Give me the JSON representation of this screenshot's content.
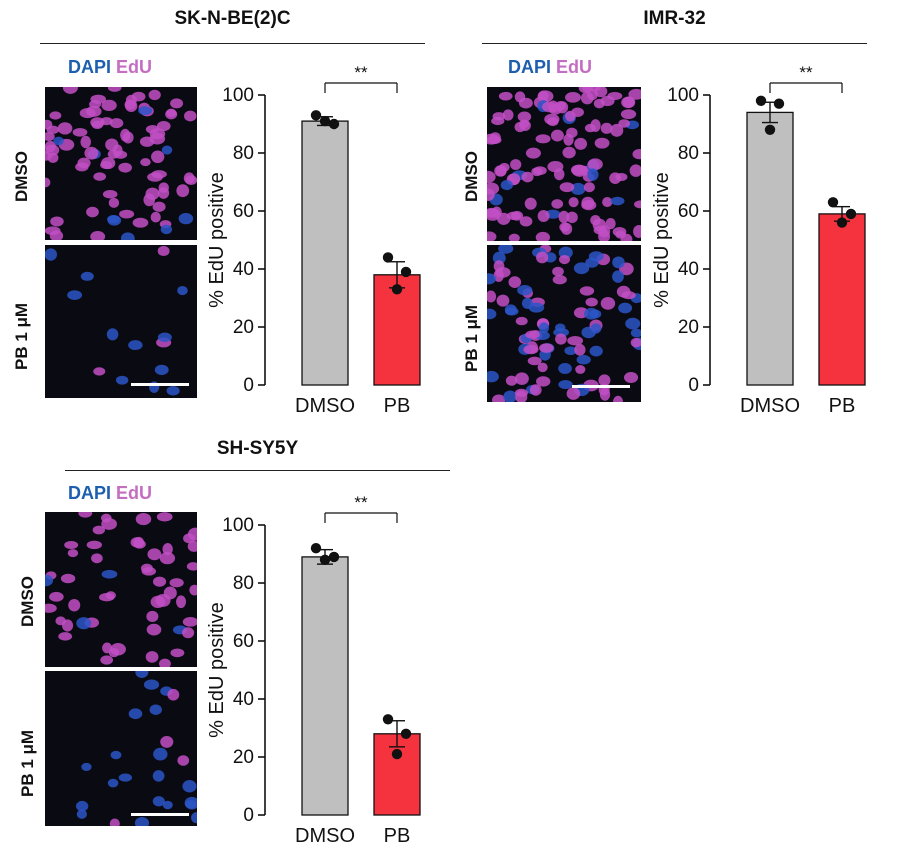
{
  "colors": {
    "dapi": "#1d5fae",
    "edu": "#c46ec2",
    "dmso_bar": "#bfbfbf",
    "pb_bar": "#f5333f",
    "nucleus_edu": "#c24fc5",
    "nucleus_dapi": "#2b55c8",
    "micrograph_bg": "#0a0a12"
  },
  "panels": [
    {
      "cell_line": "SK-N-BE(2)C",
      "stain_dapi": "DAPI",
      "stain_edu": "EdU",
      "row_top": "DMSO",
      "row_bottom": "PB 1 μM",
      "significance": "**"
    },
    {
      "cell_line": "IMR-32",
      "stain_dapi": "DAPI",
      "stain_edu": "EdU",
      "row_top": "DMSO",
      "row_bottom": "PB 1 μM",
      "significance": "**"
    },
    {
      "cell_line": "SH-SY5Y",
      "stain_dapi": "DAPI",
      "stain_edu": "EdU",
      "row_top": "DMSO",
      "row_bottom": "PB 1 μM",
      "significance": "**"
    }
  ],
  "chart_data": [
    {
      "type": "bar",
      "categories": [
        "DMSO",
        "PB"
      ],
      "values": [
        91,
        38
      ],
      "errors": [
        1.5,
        4.5
      ],
      "points": [
        [
          93,
          90,
          91
        ],
        [
          44,
          39,
          33
        ]
      ],
      "ylabel": "% EdU positive",
      "ylim": [
        0,
        100
      ],
      "yticks": [
        0,
        20,
        40,
        60,
        80,
        100
      ],
      "significance": "**"
    },
    {
      "type": "bar",
      "categories": [
        "DMSO",
        "PB"
      ],
      "values": [
        94,
        59
      ],
      "errors": [
        3.5,
        2.5
      ],
      "points": [
        [
          98,
          97,
          88
        ],
        [
          63,
          59,
          56
        ]
      ],
      "ylabel": "% EdU positive",
      "ylim": [
        0,
        100
      ],
      "yticks": [
        0,
        20,
        40,
        60,
        80,
        100
      ],
      "significance": "**"
    },
    {
      "type": "bar",
      "categories": [
        "DMSO",
        "PB"
      ],
      "values": [
        89,
        28
      ],
      "errors": [
        2.5,
        4.5
      ],
      "points": [
        [
          92,
          89,
          88
        ],
        [
          33,
          28,
          21
        ]
      ],
      "ylabel": "% EdU positive",
      "ylim": [
        0,
        100
      ],
      "yticks": [
        0,
        20,
        40,
        60,
        80,
        100
      ],
      "significance": "**"
    }
  ]
}
